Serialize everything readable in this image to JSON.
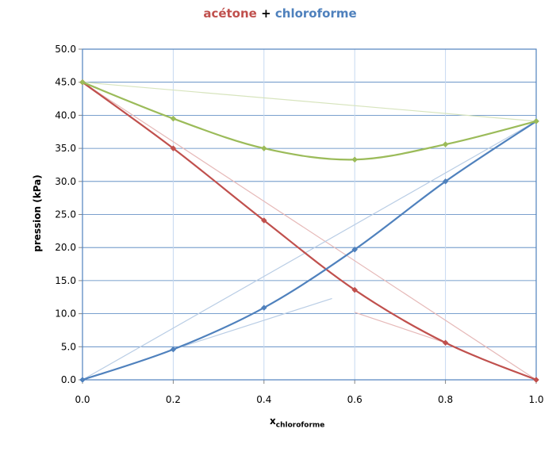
{
  "title": {
    "part1": "acétone",
    "plus": "+",
    "part2": "chloroforme"
  },
  "colors": {
    "acetone": "#c0504d",
    "chloroforme": "#4f81bd",
    "total": "#9bbb59",
    "ideal_total": "#d7e4bd",
    "ideal_acetone": "#e6b9b8",
    "ideal_chloroforme": "#b9cde5",
    "grid_h": "#4f81bd",
    "grid_v": "#c6d9f1",
    "plot_border": "#4f81bd"
  },
  "chart_data": {
    "type": "line",
    "xlabel_main": "x",
    "xlabel_sub": "chloroforme",
    "ylabel": "pression (kPa)",
    "xlim": [
      0,
      1
    ],
    "ylim": [
      0,
      50
    ],
    "x_ticks": [
      "0.0",
      "0.2",
      "0.4",
      "0.6",
      "0.8",
      "1.0"
    ],
    "y_ticks": [
      "0.0",
      "5.0",
      "10.0",
      "15.0",
      "20.0",
      "25.0",
      "30.0",
      "35.0",
      "40.0",
      "45.0",
      "50.0"
    ],
    "series": [
      {
        "key": "acetone",
        "x": [
          0,
          0.2,
          0.4,
          0.6,
          0.8,
          1.0
        ],
        "y": [
          45.0,
          35.0,
          24.1,
          13.6,
          5.6,
          0.0
        ]
      },
      {
        "key": "chloroforme",
        "x": [
          0,
          0.2,
          0.4,
          0.6,
          0.8,
          1.0
        ],
        "y": [
          0.0,
          4.6,
          10.9,
          19.7,
          30.0,
          39.1
        ]
      },
      {
        "key": "total",
        "x": [
          0,
          0.2,
          0.4,
          0.6,
          0.8,
          1.0
        ],
        "y": [
          45.0,
          39.5,
          35.0,
          33.3,
          35.6,
          39.1
        ]
      }
    ],
    "reference_lines": [
      {
        "key": "ideal_total",
        "x": [
          0,
          1
        ],
        "y": [
          45.0,
          39.1
        ]
      },
      {
        "key": "ideal_acetone",
        "x": [
          0,
          1
        ],
        "y": [
          45.0,
          0.0
        ]
      },
      {
        "key": "ideal_chloroforme",
        "x": [
          0,
          1
        ],
        "y": [
          0.0,
          39.1
        ]
      },
      {
        "key": "henry_chloroforme",
        "x": [
          0.2,
          0.55
        ],
        "y": [
          4.6,
          12.3
        ]
      },
      {
        "key": "henry_acetone",
        "x": [
          0.6,
          0.8
        ],
        "y": [
          10.2,
          5.6
        ]
      }
    ]
  }
}
